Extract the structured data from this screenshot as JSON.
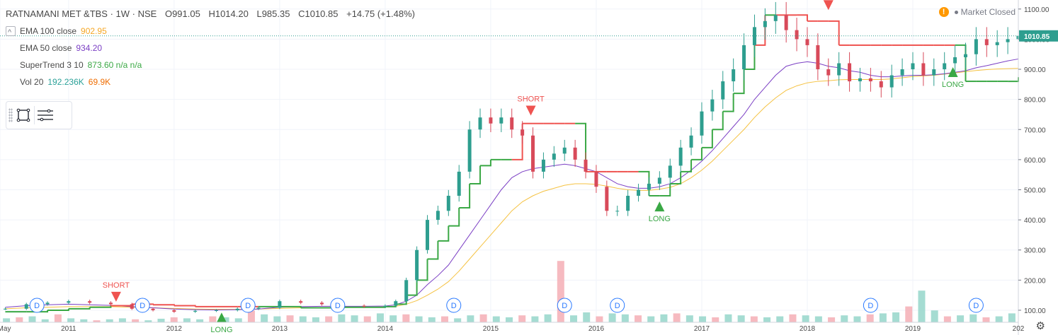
{
  "header": {
    "symbol": "RATNAMANI MET &TBS · 1W · NSE",
    "open": "O991.05",
    "high": "H1014.20",
    "low": "L985.35",
    "close": "C1010.85",
    "change": "+14.75 (+1.48%)",
    "market_status": "Market Closed"
  },
  "indicators": [
    {
      "label": "EMA 100 close",
      "value": "902.95",
      "color": "#f5c242"
    },
    {
      "label": "EMA 50 close",
      "value": "934.20",
      "color": "#7b3fc4"
    },
    {
      "label": "SuperTrend 3 10",
      "value": "873.60 n/a n/a",
      "color": "#3aa845"
    },
    {
      "label": "Vol 20",
      "value": "192.236K",
      "value2": "69.9K",
      "color": "#2aa198",
      "color2": "#ef6c00"
    }
  ],
  "colors": {
    "up": "#2e9e8f",
    "down": "#d84a5a",
    "supertrend_up": "#3aa845",
    "supertrend_down": "#ef5350",
    "ema50": "#7b3fc4",
    "ema100": "#f5c242",
    "volume_up": "#8fd3c7",
    "volume_down": "#f4a9b0",
    "dividend": "#2979ff"
  },
  "chart_data": {
    "type": "line",
    "title": "RATNAMANI MET &TBS · 1W · NSE",
    "x": [
      "2010.4",
      "2010.6",
      "2010.8",
      "2011.0",
      "2011.2",
      "2011.4",
      "2011.6",
      "2011.8",
      "2012.0",
      "2012.2",
      "2012.4",
      "2012.6",
      "2012.8",
      "2013.0",
      "2013.2",
      "2013.4",
      "2013.6",
      "2013.8",
      "2014.0",
      "2014.1",
      "2014.2",
      "2014.3",
      "2014.4",
      "2014.5",
      "2014.6",
      "2014.7",
      "2014.8",
      "2014.9",
      "2015.0",
      "2015.1",
      "2015.2",
      "2015.3",
      "2015.4",
      "2015.5",
      "2015.6",
      "2015.7",
      "2015.8",
      "2015.9",
      "2016.0",
      "2016.1",
      "2016.2",
      "2016.3",
      "2016.4",
      "2016.5",
      "2016.6",
      "2016.7",
      "2016.8",
      "2016.9",
      "2017.0",
      "2017.1",
      "2017.2",
      "2017.3",
      "2017.4",
      "2017.5",
      "2017.6",
      "2017.7",
      "2017.8",
      "2017.9",
      "2018.0",
      "2018.1",
      "2018.2",
      "2018.3",
      "2018.4",
      "2018.5",
      "2018.6",
      "2018.7",
      "2018.8",
      "2018.9",
      "2019.0",
      "2019.1",
      "2019.2",
      "2019.3",
      "2019.4",
      "2019.5",
      "2019.6",
      "2019.7",
      "2019.8",
      "2019.9",
      "2020.0"
    ],
    "series": [
      {
        "name": "Close",
        "values": [
          105,
          120,
          125,
          130,
          125,
          120,
          105,
          100,
          95,
          98,
          100,
          105,
          108,
          130,
          125,
          120,
          115,
          112,
          115,
          130,
          200,
          300,
          400,
          430,
          480,
          560,
          700,
          740,
          720,
          740,
          700,
          680,
          560,
          600,
          620,
          640,
          600,
          560,
          510,
          430,
          430,
          480,
          500,
          520,
          540,
          580,
          640,
          680,
          760,
          800,
          860,
          900,
          980,
          1040,
          1060,
          1080,
          1030,
          1000,
          980,
          900,
          880,
          920,
          860,
          870,
          860,
          840,
          880,
          900,
          920,
          880,
          900,
          920,
          940,
          950,
          1000,
          980,
          990,
          1000,
          1010.85
        ]
      },
      {
        "name": "EMA 50 close",
        "values": [
          110,
          115,
          118,
          120,
          118,
          116,
          112,
          108,
          104,
          102,
          101,
          102,
          104,
          110,
          112,
          113,
          113,
          113,
          114,
          118,
          130,
          150,
          185,
          215,
          250,
          300,
          350,
          400,
          450,
          500,
          540,
          560,
          570,
          575,
          580,
          585,
          580,
          570,
          560,
          540,
          520,
          510,
          505,
          505,
          510,
          520,
          540,
          565,
          595,
          630,
          670,
          710,
          750,
          800,
          840,
          880,
          910,
          920,
          925,
          920,
          910,
          905,
          895,
          890,
          880,
          875,
          875,
          878,
          880,
          880,
          882,
          885,
          890,
          895,
          905,
          912,
          920,
          928,
          934.2
        ]
      },
      {
        "name": "EMA 100 close",
        "values": [
          105,
          108,
          110,
          112,
          112,
          112,
          110,
          108,
          106,
          104,
          103,
          103,
          104,
          106,
          108,
          109,
          110,
          110,
          111,
          113,
          120,
          132,
          150,
          170,
          195,
          230,
          270,
          310,
          350,
          390,
          430,
          460,
          480,
          495,
          505,
          515,
          520,
          520,
          518,
          512,
          505,
          500,
          498,
          498,
          502,
          508,
          520,
          540,
          565,
          595,
          630,
          665,
          700,
          740,
          775,
          805,
          830,
          845,
          855,
          860,
          862,
          865,
          866,
          866,
          866,
          866,
          868,
          872,
          876,
          878,
          880,
          884,
          888,
          892,
          896,
          899,
          901,
          902,
          902.95
        ]
      },
      {
        "name": "SuperTrend 3 10",
        "values": [
          95,
          95,
          100,
          105,
          110,
          115,
          120,
          118,
          115,
          112,
          112,
          112,
          112,
          112,
          108,
          108,
          110,
          110,
          112,
          120,
          150,
          200,
          270,
          330,
          380,
          440,
          520,
          580,
          600,
          600,
          600,
          720,
          720,
          720,
          720,
          720,
          720,
          560,
          560,
          560,
          560,
          560,
          560,
          480,
          480,
          520,
          560,
          600,
          640,
          700,
          760,
          820,
          900,
          980,
          1080,
          1080,
          1080,
          1080,
          1060,
          1060,
          1060,
          980,
          980,
          980,
          980,
          980,
          980,
          980,
          980,
          980,
          980,
          980,
          980,
          860,
          860,
          860,
          860,
          860,
          873.6
        ]
      }
    ],
    "signals": [
      {
        "label": "SHORT",
        "x": "2011.45"
      },
      {
        "label": "LONG",
        "x": "2012.45"
      },
      {
        "label": "SHORT",
        "x": "2015.38"
      },
      {
        "label": "LONG",
        "x": "2016.6"
      },
      {
        "label": "SHORT",
        "x": "2018.2"
      },
      {
        "label": "LONG",
        "x": "2019.38"
      }
    ],
    "dividends": [
      {
        "label": "D",
        "x": "2010.7"
      },
      {
        "label": "D",
        "x": "2011.7"
      },
      {
        "label": "D",
        "x": "2012.7"
      },
      {
        "label": "D",
        "x": "2013.55"
      },
      {
        "label": "D",
        "x": "2014.65"
      },
      {
        "label": "D",
        "x": "2015.7"
      },
      {
        "label": "D",
        "x": "2016.2"
      },
      {
        "label": "D",
        "x": "2018.6"
      },
      {
        "label": "D",
        "x": "2019.6"
      }
    ],
    "volume_values": [
      20,
      25,
      30,
      15,
      40,
      20,
      15,
      10,
      15,
      20,
      15,
      10,
      18,
      25,
      20,
      15,
      30,
      25,
      20,
      60,
      40,
      30,
      35,
      30,
      25,
      30,
      40,
      35,
      30,
      45,
      35,
      40,
      30,
      25,
      30,
      20,
      35,
      40,
      30,
      25,
      35,
      30,
      40,
      310,
      35,
      50,
      30,
      45,
      40,
      35,
      30,
      40,
      45,
      35,
      30,
      25,
      40,
      35,
      30,
      25,
      30,
      40,
      35,
      30,
      25,
      35,
      30,
      40,
      45,
      50,
      80,
      160,
      60,
      30,
      35,
      40,
      25,
      30,
      45
    ],
    "x_ticks": [
      "May",
      "2011",
      "2012",
      "2013",
      "2014",
      "2015",
      "2016",
      "2017",
      "2018",
      "2019",
      "202"
    ],
    "x_tick_positions": [
      2010.35,
      2011,
      2012,
      2013,
      2014,
      2015,
      2016,
      2017,
      2018,
      2019,
      2020
    ],
    "y_ticks": [
      100,
      200,
      300,
      400,
      500,
      600,
      700,
      800,
      900,
      1000,
      1100
    ],
    "y_tick_labels": [
      "100.00",
      "200.00",
      "300.00",
      "400.00",
      "500.00",
      "600.00",
      "700.00",
      "800.00",
      "900.00",
      "1000.00",
      "1100.00"
    ],
    "current_price_label": "1010.85",
    "current_price": 1010.85,
    "xlim": [
      2010.35,
      2020.0
    ],
    "ylim": [
      60,
      1130
    ],
    "grid": true
  }
}
